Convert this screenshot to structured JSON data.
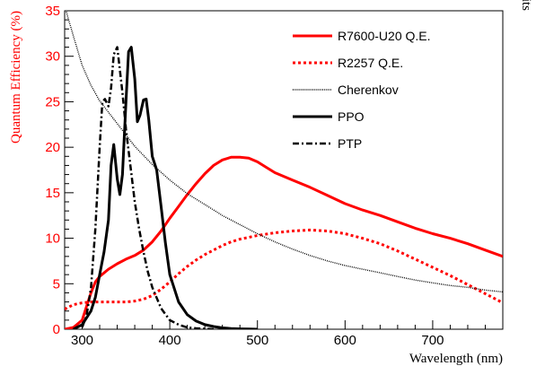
{
  "chart_data": {
    "type": "line",
    "title": "",
    "xlabel": "Wavelength (nm)",
    "ylabel": "Quantum Efficiency (%)",
    "y2label": "Arb. Units",
    "xlim": [
      280,
      780
    ],
    "ylim": [
      0,
      35
    ],
    "x_ticks": [
      300,
      400,
      500,
      600,
      700
    ],
    "y_ticks": [
      0,
      5,
      10,
      15,
      20,
      25,
      30,
      35
    ],
    "grid": false,
    "legend_position": "top-right",
    "ylabel_color": "#ff0000",
    "series": [
      {
        "name": "R7600-U20 Q.E.",
        "color": "#ff0000",
        "dash": "solid",
        "x": [
          280,
          290,
          300,
          305,
          310,
          315,
          320,
          330,
          340,
          350,
          360,
          370,
          380,
          390,
          400,
          410,
          420,
          430,
          440,
          450,
          460,
          470,
          480,
          490,
          500,
          510,
          520,
          540,
          560,
          580,
          600,
          620,
          640,
          660,
          680,
          700,
          720,
          740,
          760,
          780
        ],
        "y": [
          0,
          0.2,
          1.0,
          2.5,
          4.0,
          5.2,
          5.8,
          6.6,
          7.2,
          7.7,
          8.1,
          8.7,
          9.6,
          10.8,
          12.2,
          13.5,
          14.8,
          16.0,
          17.1,
          18.0,
          18.6,
          18.9,
          18.9,
          18.8,
          18.4,
          17.8,
          17.2,
          16.4,
          15.6,
          14.7,
          13.8,
          13.1,
          12.5,
          11.8,
          11.1,
          10.5,
          10.0,
          9.4,
          8.7,
          8.0
        ]
      },
      {
        "name": "R2257 Q.E.",
        "color": "#ff0000",
        "dash": "dotted",
        "x": [
          280,
          290,
          300,
          310,
          320,
          330,
          340,
          350,
          360,
          370,
          380,
          390,
          400,
          410,
          420,
          430,
          440,
          450,
          460,
          470,
          480,
          490,
          500,
          520,
          540,
          560,
          580,
          600,
          620,
          640,
          660,
          680,
          700,
          720,
          740,
          760,
          780
        ],
        "y": [
          2.2,
          2.7,
          2.9,
          3.0,
          3.0,
          3.0,
          3.0,
          3.0,
          3.1,
          3.3,
          3.7,
          4.4,
          5.2,
          6.1,
          6.9,
          7.6,
          8.2,
          8.7,
          9.2,
          9.6,
          9.9,
          10.1,
          10.3,
          10.6,
          10.8,
          10.9,
          10.8,
          10.5,
          10.0,
          9.4,
          8.6,
          7.7,
          6.8,
          5.9,
          4.9,
          3.9,
          2.9
        ]
      },
      {
        "name": "Cherenkov",
        "color": "#000000",
        "dash": "fine",
        "x": [
          280,
          290,
          300,
          310,
          320,
          340,
          360,
          380,
          400,
          420,
          440,
          460,
          480,
          500,
          520,
          540,
          560,
          580,
          600,
          620,
          640,
          660,
          680,
          700,
          720,
          740,
          760,
          780
        ],
        "y": [
          35.5,
          32.2,
          29.0,
          26.8,
          25.1,
          22.6,
          20.1,
          18.1,
          16.4,
          14.9,
          13.7,
          12.5,
          11.5,
          10.5,
          9.6,
          8.8,
          8.1,
          7.5,
          7.0,
          6.6,
          6.2,
          5.8,
          5.4,
          5.1,
          4.8,
          4.6,
          4.3,
          4.1
        ]
      },
      {
        "name": "PPO",
        "color": "#000000",
        "dash": "solid",
        "x": [
          290,
          300,
          310,
          315,
          320,
          325,
          330,
          333,
          336,
          340,
          343,
          346,
          350,
          353,
          356,
          360,
          363,
          366,
          370,
          373,
          376,
          380,
          385,
          390,
          395,
          400,
          410,
          420,
          430,
          440,
          450,
          460,
          470,
          480,
          490,
          500
        ],
        "y": [
          0,
          0.5,
          2.0,
          3.5,
          6.0,
          8.5,
          12.0,
          18.0,
          20.3,
          16.5,
          14.8,
          17.0,
          25.0,
          30.5,
          31.0,
          27.5,
          22.8,
          23.5,
          25.2,
          25.3,
          23.0,
          19.0,
          17.5,
          13.5,
          9.5,
          6.0,
          3.0,
          1.6,
          0.9,
          0.5,
          0.3,
          0.15,
          0.08,
          0.04,
          0.02,
          0
        ]
      },
      {
        "name": "PTP",
        "color": "#000000",
        "dash": "dashdot",
        "x": [
          300,
          305,
          310,
          315,
          320,
          323,
          326,
          330,
          333,
          336,
          340,
          343,
          346,
          350,
          355,
          360,
          365,
          370,
          375,
          380,
          390,
          400,
          410,
          420,
          430,
          440,
          450
        ],
        "y": [
          0.2,
          1.5,
          4.5,
          11.0,
          20.0,
          25.0,
          25.3,
          24.5,
          26.5,
          30.2,
          31.0,
          28.5,
          26.0,
          22.0,
          18.0,
          14.0,
          11.0,
          8.5,
          6.3,
          4.6,
          2.3,
          1.0,
          0.5,
          0.2,
          0.1,
          0.05,
          0
        ]
      }
    ]
  }
}
